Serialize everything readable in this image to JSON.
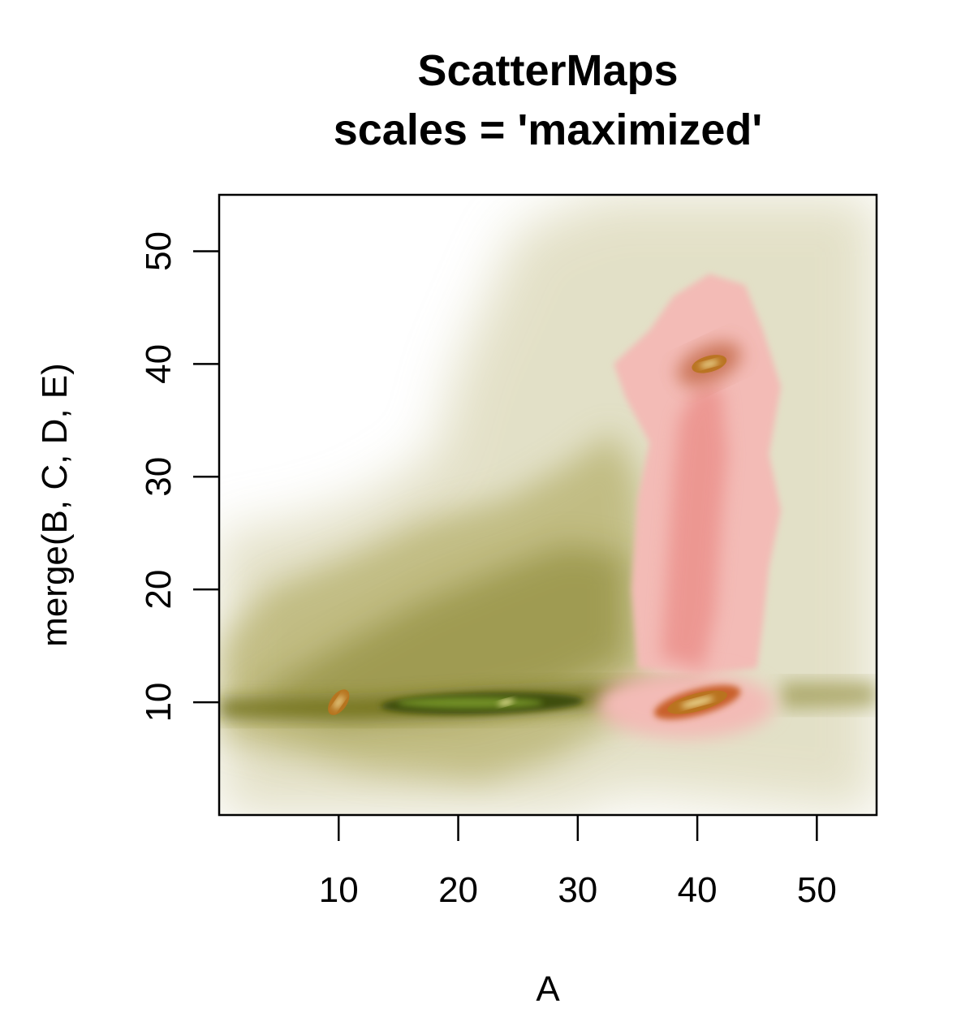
{
  "chart_data": {
    "type": "heatmap",
    "title": "ScatterMaps",
    "subtitle": "scales = 'maximized'",
    "xlabel": "A",
    "ylabel": "merge(B, C, D, E)",
    "xlim": [
      0,
      55
    ],
    "ylim": [
      0,
      55
    ],
    "x_ticks": [
      "10",
      "20",
      "30",
      "40",
      "50"
    ],
    "y_ticks": [
      "10",
      "20",
      "30",
      "40",
      "50"
    ],
    "grid": false,
    "colors": {
      "series_1": "#6b6a14",
      "series_1_light": "#ccc79a",
      "series_2": "#e8807a",
      "series_2_light": "#f3bbb6",
      "peak": "#f4e9a6",
      "peak_ring": "#b8741f"
    },
    "series": [
      {
        "color": "olive",
        "density_regions": [
          {
            "level": "low",
            "x_range": [
              0,
              55
            ],
            "y_range": [
              0,
              55
            ]
          },
          {
            "level": "medium",
            "x_range": [
              0,
              55
            ],
            "y_range": [
              5,
              30
            ]
          },
          {
            "level": "high",
            "x_range": [
              8,
              40
            ],
            "y_range": [
              8,
              12
            ]
          }
        ],
        "peaks": [
          {
            "x": 10,
            "y": 10
          },
          {
            "x": 24,
            "y": 10
          }
        ]
      },
      {
        "color": "red",
        "density_regions": [
          {
            "level": "low",
            "x_range": [
              29,
              47
            ],
            "y_range": [
              4,
              48
            ]
          },
          {
            "level": "medium",
            "x_range": [
              35,
              46
            ],
            "y_range": [
              8,
              42
            ]
          }
        ],
        "peaks": [
          {
            "x": 40,
            "y": 10
          },
          {
            "x": 41,
            "y": 40
          }
        ]
      }
    ]
  }
}
